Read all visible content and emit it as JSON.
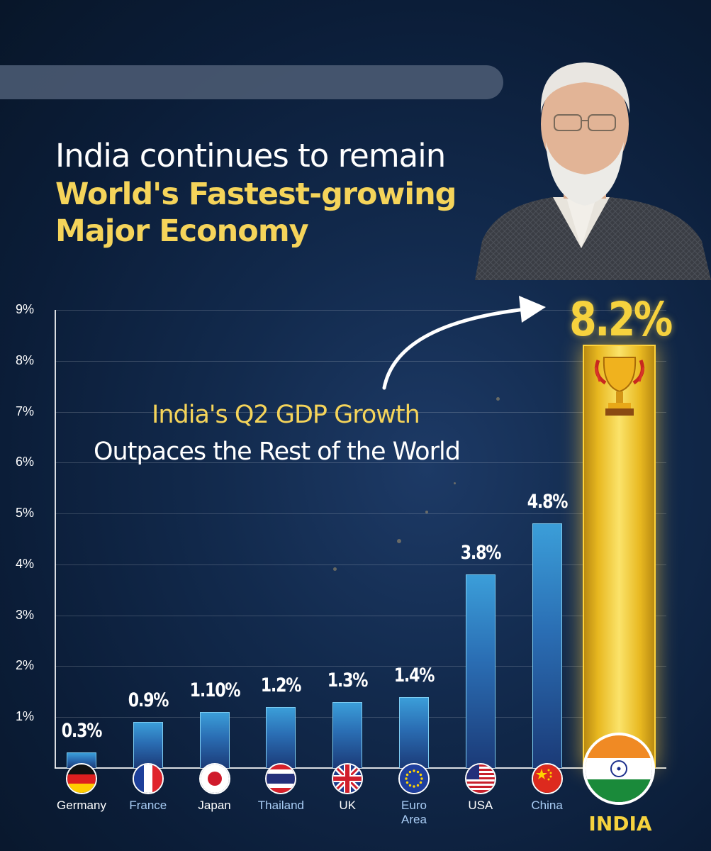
{
  "headline": {
    "line1": "India continues to remain",
    "line2": "World's Fastest-growing",
    "line3": "Major Economy"
  },
  "annotation": {
    "line1": "India's Q2 GDP Growth",
    "line2": "Outpaces the Rest of the World"
  },
  "colors": {
    "background": "#0b1d38",
    "accent_gold": "#f6d23e",
    "bar_blue": "#2a6db3",
    "text_white": "#ffffff"
  },
  "chart_data": {
    "type": "bar",
    "title": "India continues to remain World's Fastest-growing Major Economy",
    "ylabel": "",
    "xlabel": "",
    "ylim": [
      0,
      9
    ],
    "yticks": [
      {
        "value": 1,
        "label": "1%"
      },
      {
        "value": 2,
        "label": "2%"
      },
      {
        "value": 3,
        "label": "3%"
      },
      {
        "value": 4,
        "label": "4%"
      },
      {
        "value": 5,
        "label": "5%"
      },
      {
        "value": 6,
        "label": "6%"
      },
      {
        "value": 7,
        "label": "7%"
      },
      {
        "value": 8,
        "label": "8%"
      },
      {
        "value": 9,
        "label": "9%"
      }
    ],
    "grid": true,
    "bars": [
      {
        "category": "Germany",
        "value": 0.3,
        "label": "0.3%",
        "flag_icon": "germany-flag-icon",
        "name_color": "white"
      },
      {
        "category": "France",
        "value": 0.9,
        "label": "0.9%",
        "flag_icon": "france-flag-icon",
        "name_color": "blue"
      },
      {
        "category": "Japan",
        "value": 1.1,
        "label": "1.10%",
        "flag_icon": "japan-flag-icon",
        "name_color": "white"
      },
      {
        "category": "Thailand",
        "value": 1.2,
        "label": "1.2%",
        "flag_icon": "thailand-flag-icon",
        "name_color": "blue"
      },
      {
        "category": "UK",
        "value": 1.3,
        "label": "1.3%",
        "flag_icon": "uk-flag-icon",
        "name_color": "white"
      },
      {
        "category": "Euro Area",
        "value": 1.4,
        "label": "1.4%",
        "flag_icon": "eu-flag-icon",
        "name_color": "blue"
      },
      {
        "category": "USA",
        "value": 3.8,
        "label": "3.8%",
        "flag_icon": "usa-flag-icon",
        "name_color": "white"
      },
      {
        "category": "China",
        "value": 4.8,
        "label": "4.8%",
        "flag_icon": "china-flag-icon",
        "name_color": "blue"
      }
    ],
    "highlight": {
      "category": "INDIA",
      "value": 8.2,
      "label": "8.2%",
      "flag_icon": "india-flag-icon",
      "badge_icon": "trophy-icon"
    }
  }
}
